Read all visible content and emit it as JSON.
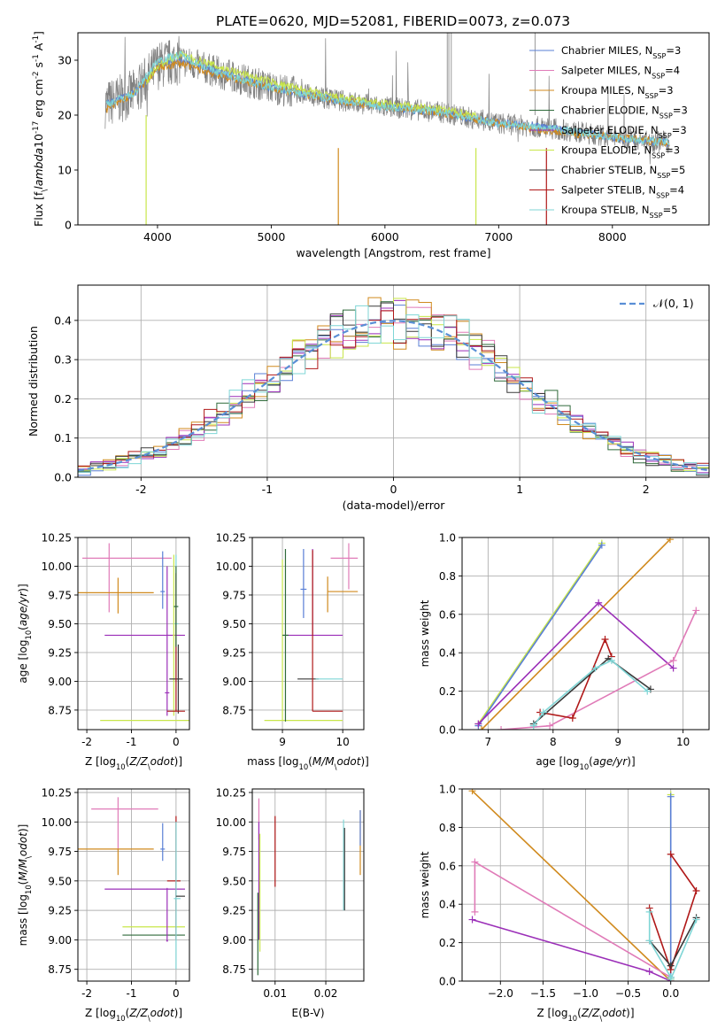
{
  "figure_title": "PLATE=0620, MJD=52081, FIBERID=0073, z=0.073",
  "colors": {
    "Chabrier MILES": "#5a7fd6",
    "Salpeter MILES": "#e07bb8",
    "Kroupa MILES": "#d08a1e",
    "Chabrier ELODIE": "#2f6a3a",
    "Salpeter ELODIE": "#9b2fb8",
    "Kroupa ELODIE": "#c8e64a",
    "Chabrier STELIB": "#3a3a3a",
    "Salpeter STELIB": "#b01818",
    "Kroupa STELIB": "#7fd6d6"
  },
  "chart_data": [
    {
      "id": "spectrum",
      "type": "line",
      "xlabel": "wavelength [Angstrom, rest frame]",
      "ylabel": "Flux [f$_\\lambda$10$^{-17}$ erg cm$^{-2}$ s$^{-1}$ A$^{-1}$]",
      "xlim": [
        3300,
        8850
      ],
      "ylim": [
        0,
        35
      ],
      "xticks": [
        4000,
        5000,
        6000,
        7000,
        8000
      ],
      "yticks": [
        0,
        10,
        20,
        30
      ],
      "legend_position": "top-right",
      "legend": [
        "Chabrier MILES, N$_{SSP}$=3",
        "Salpeter MILES, N$_{SSP}$=4",
        "Kroupa MILES, N$_{SSP}$=3",
        "Chabrier ELODIE, N$_{SSP}$=3",
        "Salpeter ELODIE, N$_{SSP}$=3",
        "Kroupa ELODIE, N$_{SSP}$=3",
        "Chabrier STELIB, N$_{SSP}$=5",
        "Salpeter STELIB, N$_{SSP}$=4",
        "Kroupa STELIB, N$_{SSP}$=5"
      ],
      "series": [
        {
          "name": "Chabrier MILES",
          "x": [
            3550,
            3800,
            4000,
            4200,
            4500,
            5000,
            5500,
            6000,
            6500,
            7000,
            7500,
            8000,
            8500
          ],
          "values": [
            22,
            24,
            29,
            30,
            28,
            25,
            23,
            21.5,
            20.5,
            18.5,
            17.5,
            16,
            15
          ]
        },
        {
          "name": "Kroupa MILES",
          "x": [
            3550,
            3800,
            4000,
            4200,
            4500,
            5000,
            5500,
            6000,
            6500,
            7000,
            7500,
            8000,
            8500
          ],
          "values": [
            21,
            24,
            28.5,
            29.5,
            27.5,
            25,
            23,
            21.5,
            20.5,
            18.5,
            17,
            16,
            15
          ]
        },
        {
          "name": "Kroupa ELODIE",
          "x": [
            3900,
            4000,
            4200,
            4500,
            5000,
            5500,
            6000,
            6500,
            6800
          ],
          "values": [
            26,
            29,
            31,
            29,
            26,
            23.5,
            22,
            21,
            20
          ]
        },
        {
          "name": "Kroupa STELIB",
          "x": [
            3550,
            3800,
            4000,
            4200,
            4500,
            5000,
            5500,
            6000,
            6500,
            7000,
            7500,
            8000,
            8500
          ],
          "values": [
            22,
            24,
            30,
            31,
            28,
            25,
            23,
            21.5,
            20.5,
            18.5,
            17.5,
            16,
            15
          ]
        }
      ]
    },
    {
      "id": "residuals",
      "type": "line",
      "xlabel": "(data-model)/error",
      "ylabel": "Normed distribution",
      "xlim": [
        -2.5,
        2.5
      ],
      "ylim": [
        0,
        0.49
      ],
      "xticks": [
        -2,
        -1,
        0,
        1,
        2
      ],
      "yticks": [
        0.0,
        0.1,
        0.2,
        0.3,
        0.4
      ],
      "legend_position": "top-right",
      "legend": [
        "$\\mathcal{N}(0,1)$"
      ],
      "gaussian": {
        "mu": 0,
        "sigma": 1
      }
    },
    {
      "id": "age-vs-Z",
      "type": "scatter",
      "xlabel": "Z [log$_{10}$($Z/Z_\\odot$)]",
      "ylabel": "age  [log$_{10}$($age/yr$)]",
      "xlim": [
        -2.2,
        0.3
      ],
      "ylim": [
        8.58,
        10.25
      ],
      "xticks": [
        -2,
        -1,
        0
      ],
      "yticks": [
        8.75,
        9.0,
        9.25,
        9.5,
        9.75,
        10.0,
        10.25
      ],
      "points": [
        {
          "series": "Salpeter MILES",
          "x": -1.5,
          "y": 10.07,
          "xerr": [
            0.6,
            1.4
          ],
          "yerr": [
            0.47,
            0.13
          ]
        },
        {
          "series": "Kroupa MILES",
          "x": -1.3,
          "y": 9.77,
          "xerr": [
            0.9,
            0.8
          ],
          "yerr": [
            0.18,
            0.13
          ]
        },
        {
          "series": "Salpeter ELODIE",
          "x": -0.65,
          "y": 9.4,
          "xerr": [
            0.95,
            0.85
          ],
          "yerr": [
            0.0,
            0.0
          ]
        },
        {
          "series": "Kroupa ELODIE",
          "x": -0.45,
          "y": 8.66,
          "xerr": [
            1.25,
            0.75
          ],
          "yerr": [
            0.0,
            0.0
          ]
        },
        {
          "series": "Chabrier MILES",
          "x": -0.3,
          "y": 9.78,
          "xerr": [
            0.05,
            0.05
          ],
          "yerr": [
            0.15,
            0.35
          ]
        },
        {
          "series": "Salpeter ELODIE",
          "x": -0.2,
          "y": 8.9,
          "xerr": [
            0.05,
            0.05
          ],
          "yerr": [
            0.2,
            1.1
          ]
        },
        {
          "series": "Kroupa STELIB",
          "x": 0.0,
          "y": 9.5,
          "xerr": [
            0.05,
            0.05
          ],
          "yerr": [
            0.5,
            0.6
          ]
        },
        {
          "series": "Kroupa ELODIE",
          "x": -0.05,
          "y": 9.4,
          "xerr": [
            0.02,
            0.02
          ],
          "yerr": [
            0.7,
            0.7
          ]
        },
        {
          "series": "Chabrier STELIB",
          "x": 0.05,
          "y": 9.02,
          "xerr": [
            0.2,
            0.1
          ],
          "yerr": [
            0.3,
            0.3
          ]
        },
        {
          "series": "Salpeter STELIB",
          "x": 0.0,
          "y": 8.74,
          "xerr": [
            0.2,
            0.2
          ],
          "yerr": [
            0.0,
            1.2
          ]
        },
        {
          "series": "Chabrier ELODIE",
          "x": 0.0,
          "y": 9.65,
          "xerr": [
            0.05,
            0.05
          ],
          "yerr": [
            0.35,
            0.35
          ]
        }
      ]
    },
    {
      "id": "age-vs-mass",
      "type": "scatter",
      "xlabel": "mass [log$_{10}$($M/M_\\odot$)]",
      "ylabel": "",
      "xlim": [
        8.5,
        10.35
      ],
      "ylim": [
        8.58,
        10.25
      ],
      "xticks": [
        9,
        10
      ],
      "yticks": [
        8.75,
        9.0,
        9.25,
        9.5,
        9.75,
        10.0,
        10.25
      ],
      "points": [
        {
          "series": "Salpeter MILES",
          "x": 10.1,
          "y": 10.07,
          "xerr": [
            0.3,
            0.15
          ],
          "yerr": [
            0.27,
            0.13
          ]
        },
        {
          "series": "Kroupa MILES",
          "x": 9.75,
          "y": 9.78,
          "xerr": [
            0.0,
            0.5
          ],
          "yerr": [
            0.18,
            0.13
          ]
        },
        {
          "series": "Salpeter ELODIE",
          "x": 9.5,
          "y": 9.4,
          "xerr": [
            0.5,
            0.5
          ],
          "yerr": [
            0.0,
            0.75
          ]
        },
        {
          "series": "Kroupa ELODIE",
          "x": 9.0,
          "y": 8.66,
          "xerr": [
            0.3,
            1.0
          ],
          "yerr": [
            0.0,
            1.4
          ]
        },
        {
          "series": "Chabrier MILES",
          "x": 9.35,
          "y": 9.8,
          "xerr": [
            0.05,
            0.05
          ],
          "yerr": [
            0.25,
            0.35
          ]
        },
        {
          "series": "Chabrier STELIB",
          "x": 9.6,
          "y": 9.02,
          "xerr": [
            0.35,
            0.0
          ],
          "yerr": [
            0.0,
            0.0
          ]
        },
        {
          "series": "Kroupa STELIB",
          "x": 9.6,
          "y": 9.02,
          "xerr": [
            0.05,
            0.4
          ],
          "yerr": [
            0.0,
            0.0
          ]
        },
        {
          "series": "Salpeter STELIB",
          "x": 9.5,
          "y": 8.74,
          "xerr": [
            0.0,
            0.5
          ],
          "yerr": [
            0.0,
            1.4
          ]
        },
        {
          "series": "Chabrier ELODIE",
          "x": 9.05,
          "y": 9.4,
          "xerr": [
            0.05,
            0.05
          ],
          "yerr": [
            0.75,
            0.75
          ]
        }
      ]
    },
    {
      "id": "weight-vs-age",
      "type": "line",
      "xlabel": "age  [log$_{10}$($age/yr$)]",
      "ylabel": "mass weight",
      "xlim": [
        6.6,
        10.4
      ],
      "ylim": [
        0,
        1.0
      ],
      "xticks": [
        7,
        8,
        9,
        10
      ],
      "yticks": [
        0.0,
        0.2,
        0.4,
        0.6,
        0.8,
        1.0
      ],
      "series": [
        {
          "name": "Kroupa ELODIE",
          "x": [
            6.85,
            8.75
          ],
          "values": [
            0.03,
            0.97
          ]
        },
        {
          "name": "Chabrier MILES",
          "x": [
            6.85,
            8.75
          ],
          "values": [
            0.02,
            0.96
          ]
        },
        {
          "name": "Kroupa MILES",
          "x": [
            6.9,
            9.8
          ],
          "values": [
            0.0,
            0.99
          ]
        },
        {
          "name": "Salpeter ELODIE",
          "x": [
            6.85,
            8.7,
            9.85
          ],
          "values": [
            0.03,
            0.66,
            0.32
          ]
        },
        {
          "name": "Salpeter MILES",
          "x": [
            7.2,
            7.95,
            9.85,
            10.2
          ],
          "values": [
            0.0,
            0.02,
            0.36,
            0.62
          ]
        },
        {
          "name": "Salpeter STELIB",
          "x": [
            7.8,
            8.3,
            8.8,
            8.9
          ],
          "values": [
            0.09,
            0.06,
            0.47,
            0.38
          ]
        },
        {
          "name": "Chabrier STELIB",
          "x": [
            7.7,
            8.85,
            9.5
          ],
          "values": [
            0.03,
            0.37,
            0.21
          ]
        },
        {
          "name": "Kroupa STELIB",
          "x": [
            7.7,
            7.85,
            8.65,
            8.9,
            9.45
          ],
          "values": [
            0.02,
            0.09,
            0.32,
            0.36,
            0.2
          ]
        }
      ]
    },
    {
      "id": "mass-vs-Z",
      "type": "scatter",
      "xlabel": "Z [log$_{10}$($Z/Z_\\odot$)]",
      "ylabel": "mass [log$_{10}$($M/M_\\odot$)]",
      "xlim": [
        -2.2,
        0.3
      ],
      "ylim": [
        8.65,
        10.28
      ],
      "xticks": [
        -2,
        -1,
        0
      ],
      "yticks": [
        8.75,
        9.0,
        9.25,
        9.5,
        9.75,
        10.0,
        10.25
      ],
      "points": [
        {
          "series": "Salpeter MILES",
          "x": -1.3,
          "y": 10.11,
          "xerr": [
            0.6,
            0.9
          ],
          "yerr": [
            0.35,
            0.1
          ]
        },
        {
          "series": "Kroupa MILES",
          "x": -1.3,
          "y": 9.77,
          "xerr": [
            0.9,
            0.8
          ],
          "yerr": [
            0.22,
            0.0
          ]
        },
        {
          "series": "Salpeter ELODIE",
          "x": -0.7,
          "y": 9.43,
          "xerr": [
            0.9,
            0.9
          ],
          "yerr": [
            0.0,
            0.0
          ]
        },
        {
          "series": "Kroupa ELODIE",
          "x": -0.5,
          "y": 9.11,
          "xerr": [
            0.7,
            0.7
          ],
          "yerr": [
            0.0,
            0.0
          ]
        },
        {
          "series": "Chabrier ELODIE",
          "x": -0.5,
          "y": 9.04,
          "xerr": [
            0.7,
            0.7
          ],
          "yerr": [
            0.0,
            0.0
          ]
        },
        {
          "series": "Chabrier MILES",
          "x": -0.3,
          "y": 9.77,
          "xerr": [
            0.05,
            0.05
          ],
          "yerr": [
            0.1,
            0.22
          ]
        },
        {
          "series": "Salpeter STELIB",
          "x": 0.0,
          "y": 9.5,
          "xerr": [
            0.2,
            0.1
          ],
          "yerr": [
            0.5,
            0.55
          ]
        },
        {
          "series": "Kroupa STELIB",
          "x": 0.0,
          "y": 9.35,
          "xerr": [
            0.05,
            0.1
          ],
          "yerr": [
            0.6,
            0.65
          ]
        },
        {
          "series": "Chabrier STELIB",
          "x": 0.1,
          "y": 9.37,
          "xerr": [
            0.1,
            0.1
          ],
          "yerr": [
            0.0,
            0.0
          ]
        },
        {
          "series": "Salpeter ELODIE",
          "x": -0.2,
          "y": 8.99,
          "xerr": [
            0.02,
            0.02
          ],
          "yerr": [
            0.0,
            0.45
          ]
        }
      ]
    },
    {
      "id": "mass-vs-EBV",
      "type": "scatter",
      "xlabel": "E(B-V)",
      "ylabel": "",
      "xlim": [
        0.0055,
        0.0275
      ],
      "ylim": [
        8.65,
        10.28
      ],
      "xticks": [
        0.01,
        0.02
      ],
      "yticks": [
        8.75,
        9.0,
        9.25,
        9.5,
        9.75,
        10.0,
        10.25
      ],
      "points": [
        {
          "series": "Salpeter MILES",
          "x": 0.0068,
          "y": 10.05,
          "xerr": [
            0.0,
            0.0
          ],
          "yerr": [
            0.2,
            0.15
          ]
        },
        {
          "series": "Salpeter ELODIE",
          "x": 0.0068,
          "y": 9.6,
          "xerr": [
            0.0,
            0.0
          ],
          "yerr": [
            0.6,
            0.4
          ]
        },
        {
          "series": "Kroupa ELODIE",
          "x": 0.007,
          "y": 9.3,
          "xerr": [
            0.0,
            0.0
          ],
          "yerr": [
            0.4,
            0.6
          ]
        },
        {
          "series": "Chabrier ELODIE",
          "x": 0.0066,
          "y": 9.0,
          "xerr": [
            0.0,
            0.0
          ],
          "yerr": [
            0.3,
            0.4
          ]
        },
        {
          "series": "Salpeter STELIB",
          "x": 0.01,
          "y": 9.75,
          "xerr": [
            0.0,
            0.0
          ],
          "yerr": [
            0.3,
            0.3
          ]
        },
        {
          "series": "Kroupa STELIB",
          "x": 0.0235,
          "y": 9.65,
          "xerr": [
            0.0,
            0.0
          ],
          "yerr": [
            0.4,
            0.37
          ]
        },
        {
          "series": "Chabrier STELIB",
          "x": 0.0237,
          "y": 9.55,
          "xerr": [
            0.0,
            0.0
          ],
          "yerr": [
            0.3,
            0.4
          ]
        },
        {
          "series": "Kroupa MILES",
          "x": 0.0268,
          "y": 9.8,
          "xerr": [
            0.0,
            0.0
          ],
          "yerr": [
            0.25,
            0.3
          ]
        },
        {
          "series": "Chabrier MILES",
          "x": 0.0268,
          "y": 9.9,
          "xerr": [
            0.0,
            0.0
          ],
          "yerr": [
            0.1,
            0.2
          ]
        }
      ]
    },
    {
      "id": "weight-vs-Z",
      "type": "line",
      "xlabel": "Z [log$_{10}$($Z/Z_\\odot$)]",
      "ylabel": "mass weight",
      "xlim": [
        -2.45,
        0.45
      ],
      "ylim": [
        0,
        1.0
      ],
      "xticks": [
        -2.0,
        -1.5,
        -1.0,
        -0.5,
        0.0
      ],
      "yticks": [
        0.0,
        0.2,
        0.4,
        0.6,
        0.8,
        1.0
      ],
      "series": [
        {
          "name": "Kroupa MILES",
          "x": [
            -2.33,
            0.0
          ],
          "values": [
            0.99,
            0.0
          ]
        },
        {
          "name": "Salpeter MILES",
          "x": [
            -2.3,
            -2.3,
            0.0
          ],
          "values": [
            0.36,
            0.62,
            0.02
          ]
        },
        {
          "name": "Salpeter ELODIE",
          "x": [
            -2.33,
            -0.25,
            0.0
          ],
          "values": [
            0.32,
            0.05,
            0.0
          ]
        },
        {
          "name": "Kroupa ELODIE",
          "x": [
            0.0,
            0.0,
            0.0
          ],
          "values": [
            0.01,
            0.97,
            0.02
          ]
        },
        {
          "name": "Chabrier MILES",
          "x": [
            0.0,
            0.0
          ],
          "values": [
            0.02,
            0.96
          ]
        },
        {
          "name": "Salpeter STELIB",
          "x": [
            -0.25,
            0.0,
            0.3,
            0.0
          ],
          "values": [
            0.38,
            0.06,
            0.47,
            0.66
          ]
        },
        {
          "name": "Chabrier STELIB",
          "x": [
            -0.25,
            0.0,
            0.3
          ],
          "values": [
            0.21,
            0.08,
            0.33
          ]
        },
        {
          "name": "Kroupa STELIB",
          "x": [
            -0.25,
            -0.25,
            0.0,
            0.0,
            0.3
          ],
          "values": [
            0.36,
            0.21,
            0.02,
            0.01,
            0.32
          ]
        }
      ]
    }
  ]
}
